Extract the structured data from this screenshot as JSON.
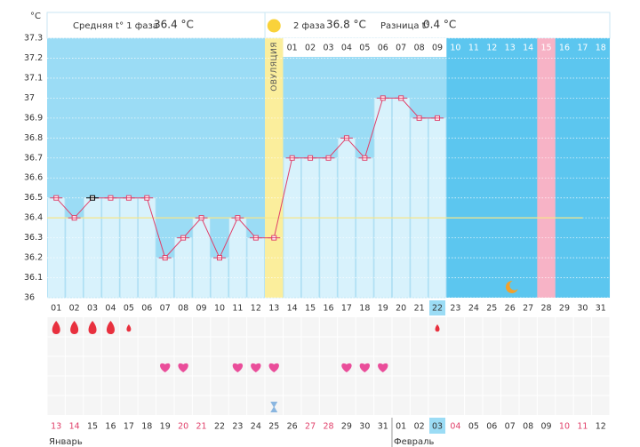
{
  "header": {
    "unit": "°C",
    "phase1_label": "Средняя t° 1 фаза",
    "phase1_value": "36.4 °C",
    "phase2_label": "2 фаза",
    "phase2_value": "36.8 °C",
    "diff_label": "Разница t°",
    "diff_value": "0.4 °C"
  },
  "chart_data": {
    "type": "line",
    "categories": [
      "01",
      "02",
      "03",
      "04",
      "05",
      "06",
      "07",
      "08",
      "09",
      "10",
      "11",
      "12",
      "13",
      "14",
      "15",
      "16",
      "17",
      "18",
      "19",
      "20",
      "21",
      "22",
      "23",
      "24",
      "25",
      "26",
      "27",
      "28",
      "29",
      "30",
      "31"
    ],
    "values": [
      36.5,
      36.4,
      36.5,
      36.5,
      36.5,
      36.5,
      36.2,
      36.3,
      36.4,
      36.2,
      36.4,
      36.3,
      36.3,
      36.7,
      36.7,
      36.7,
      36.8,
      36.7,
      37.0,
      37.0,
      36.9,
      36.9,
      null,
      null,
      null,
      null,
      null,
      null,
      null,
      null,
      null
    ],
    "color": "#e0406a",
    "ylim": [
      36,
      37.3
    ],
    "yticks": [
      36,
      36.1,
      36.2,
      36.3,
      36.4,
      36.5,
      36.6,
      36.7,
      36.8,
      36.9,
      37,
      37.1,
      37.2,
      37.3
    ],
    "grid": true,
    "coverline": 36.4,
    "selected_day": 3,
    "ovulation_day": 13,
    "ovulation_label": "ОВУЛЯЦИЯ",
    "phase2_days": [
      "01",
      "02",
      "03",
      "04",
      "05",
      "06",
      "07",
      "08",
      "09",
      "10",
      "11",
      "12",
      "13",
      "14",
      "15",
      "16",
      "17",
      "18"
    ],
    "highlight_phase2_day": 15,
    "current_day": 22,
    "moon_day": 26,
    "bleeding_days": [
      1,
      2,
      3,
      4
    ],
    "spotting_days": [
      5,
      22
    ],
    "intercourse_days": [
      7,
      8,
      11,
      12,
      13,
      17,
      18,
      19
    ],
    "test_days": [
      13
    ],
    "dates": [
      {
        "label": "13",
        "weekend": true
      },
      {
        "label": "14",
        "weekend": true
      },
      {
        "label": "15",
        "weekend": false
      },
      {
        "label": "16",
        "weekend": false
      },
      {
        "label": "17",
        "weekend": false
      },
      {
        "label": "18",
        "weekend": false
      },
      {
        "label": "19",
        "weekend": false
      },
      {
        "label": "20",
        "weekend": true
      },
      {
        "label": "21",
        "weekend": true
      },
      {
        "label": "22",
        "weekend": false
      },
      {
        "label": "23",
        "weekend": false
      },
      {
        "label": "24",
        "weekend": false
      },
      {
        "label": "25",
        "weekend": false
      },
      {
        "label": "26",
        "weekend": false
      },
      {
        "label": "27",
        "weekend": true
      },
      {
        "label": "28",
        "weekend": true
      },
      {
        "label": "29",
        "weekend": false
      },
      {
        "label": "30",
        "weekend": false
      },
      {
        "label": "31",
        "weekend": false
      },
      {
        "label": "01",
        "weekend": false
      },
      {
        "label": "02",
        "weekend": false
      },
      {
        "label": "03",
        "weekend": false
      },
      {
        "label": "04",
        "weekend": true
      },
      {
        "label": "05",
        "weekend": false
      },
      {
        "label": "06",
        "weekend": false
      },
      {
        "label": "07",
        "weekend": false
      },
      {
        "label": "08",
        "weekend": false
      },
      {
        "label": "09",
        "weekend": false
      },
      {
        "label": "10",
        "weekend": true
      },
      {
        "label": "11",
        "weekend": true
      },
      {
        "label": "12",
        "weekend": false
      }
    ],
    "months": [
      {
        "label": "Январь",
        "day": 1
      },
      {
        "label": "Февраль",
        "day": 20
      }
    ]
  }
}
